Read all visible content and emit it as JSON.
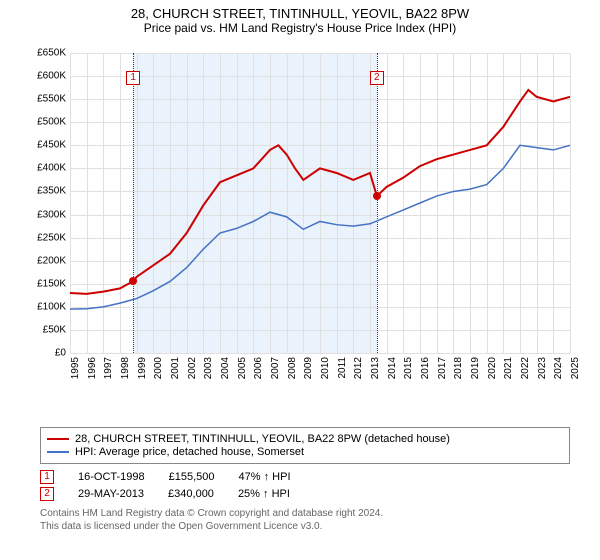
{
  "title": {
    "line1": "28, CHURCH STREET, TINTINHULL, YEOVIL, BA22 8PW",
    "line2": "Price paid vs. HM Land Registry's House Price Index (HPI)"
  },
  "chart": {
    "type": "line",
    "background_color": "#ffffff",
    "grid_color": "#e0e0e0",
    "band_color": "#eaf2fc",
    "marker_border": "#cc0000",
    "xlim": [
      1995,
      2025
    ],
    "ylim": [
      0,
      650000
    ],
    "ytick_step": 50000,
    "y_ticks": [
      "£0",
      "£50K",
      "£100K",
      "£150K",
      "£200K",
      "£250K",
      "£300K",
      "£350K",
      "£400K",
      "£450K",
      "£500K",
      "£550K",
      "£600K",
      "£650K"
    ],
    "x_ticks": [
      1995,
      1996,
      1997,
      1998,
      1999,
      2000,
      2001,
      2002,
      2003,
      2004,
      2005,
      2006,
      2007,
      2008,
      2009,
      2010,
      2011,
      2012,
      2013,
      2014,
      2015,
      2016,
      2017,
      2018,
      2019,
      2020,
      2021,
      2022,
      2023,
      2024,
      2025
    ],
    "bands": [
      {
        "from": 1998.79,
        "to": 2013.41
      }
    ],
    "sale_markers": [
      {
        "num": "1",
        "x": 1998.79,
        "y": 155500,
        "label_y_top": 18
      },
      {
        "num": "2",
        "x": 2013.41,
        "y": 340000,
        "label_y_top": 18
      }
    ],
    "series": [
      {
        "name": "property",
        "label": "28, CHURCH STREET, TINTINHULL, YEOVIL, BA22 8PW (detached house)",
        "color": "#cc0000",
        "line_width": 2,
        "points": [
          [
            1995,
            130000
          ],
          [
            1996,
            128000
          ],
          [
            1997,
            133000
          ],
          [
            1998,
            140000
          ],
          [
            1998.79,
            155500
          ],
          [
            1999,
            165000
          ],
          [
            2000,
            190000
          ],
          [
            2001,
            215000
          ],
          [
            2002,
            260000
          ],
          [
            2003,
            320000
          ],
          [
            2004,
            370000
          ],
          [
            2005,
            385000
          ],
          [
            2006,
            400000
          ],
          [
            2007,
            440000
          ],
          [
            2007.5,
            450000
          ],
          [
            2008,
            430000
          ],
          [
            2008.5,
            400000
          ],
          [
            2009,
            375000
          ],
          [
            2010,
            400000
          ],
          [
            2011,
            390000
          ],
          [
            2012,
            375000
          ],
          [
            2013,
            390000
          ],
          [
            2013.41,
            340000
          ],
          [
            2014,
            360000
          ],
          [
            2015,
            380000
          ],
          [
            2016,
            405000
          ],
          [
            2017,
            420000
          ],
          [
            2018,
            430000
          ],
          [
            2019,
            440000
          ],
          [
            2020,
            450000
          ],
          [
            2021,
            490000
          ],
          [
            2022,
            545000
          ],
          [
            2022.5,
            570000
          ],
          [
            2023,
            555000
          ],
          [
            2024,
            545000
          ],
          [
            2025,
            555000
          ]
        ]
      },
      {
        "name": "hpi",
        "label": "HPI: Average price, detached house, Somerset",
        "color": "#4472c4",
        "line_width": 1.5,
        "points": [
          [
            1995,
            95000
          ],
          [
            1996,
            96000
          ],
          [
            1997,
            100000
          ],
          [
            1998,
            108000
          ],
          [
            1999,
            118000
          ],
          [
            2000,
            135000
          ],
          [
            2001,
            155000
          ],
          [
            2002,
            185000
          ],
          [
            2003,
            225000
          ],
          [
            2004,
            260000
          ],
          [
            2005,
            270000
          ],
          [
            2006,
            285000
          ],
          [
            2007,
            305000
          ],
          [
            2008,
            295000
          ],
          [
            2009,
            268000
          ],
          [
            2010,
            285000
          ],
          [
            2011,
            278000
          ],
          [
            2012,
            275000
          ],
          [
            2013,
            280000
          ],
          [
            2014,
            295000
          ],
          [
            2015,
            310000
          ],
          [
            2016,
            325000
          ],
          [
            2017,
            340000
          ],
          [
            2018,
            350000
          ],
          [
            2019,
            355000
          ],
          [
            2020,
            365000
          ],
          [
            2021,
            400000
          ],
          [
            2022,
            450000
          ],
          [
            2023,
            445000
          ],
          [
            2024,
            440000
          ],
          [
            2025,
            450000
          ]
        ]
      }
    ]
  },
  "legend": [
    {
      "color": "#cc0000",
      "label": "28, CHURCH STREET, TINTINHULL, YEOVIL, BA22 8PW (detached house)"
    },
    {
      "color": "#4472c4",
      "label": "HPI: Average price, detached house, Somerset"
    }
  ],
  "sales": [
    {
      "num": "1",
      "date": "16-OCT-1998",
      "price": "£155,500",
      "delta": "47% ↑ HPI"
    },
    {
      "num": "2",
      "date": "29-MAY-2013",
      "price": "£340,000",
      "delta": "25% ↑ HPI"
    }
  ],
  "footnote": {
    "line1": "Contains HM Land Registry data © Crown copyright and database right 2024.",
    "line2": "This data is licensed under the Open Government Licence v3.0."
  }
}
